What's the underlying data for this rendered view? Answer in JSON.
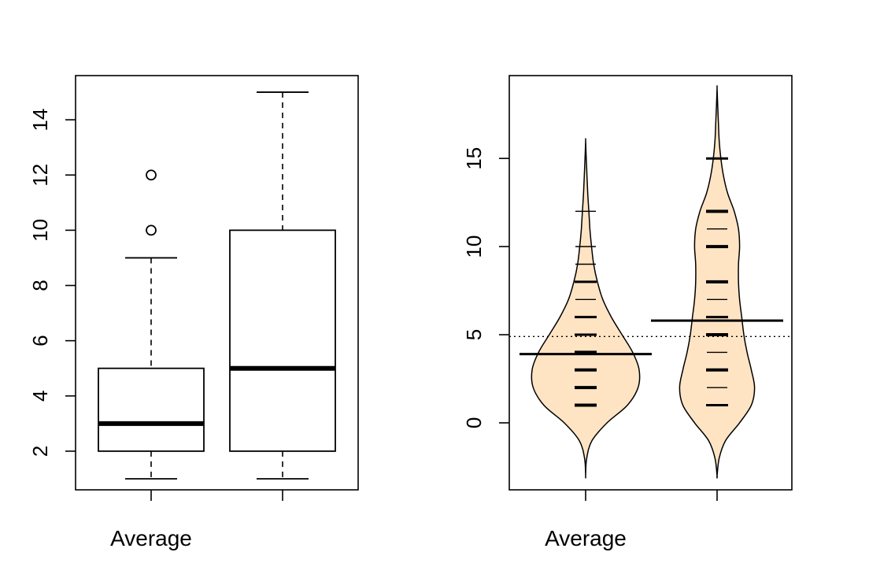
{
  "chart_data": [
    {
      "type": "boxplot",
      "categories": [
        "Average",
        ""
      ],
      "ylim": [
        0.6,
        15.6
      ],
      "yticks": [
        2,
        4,
        6,
        8,
        10,
        12,
        14
      ],
      "boxes": [
        {
          "min": 1,
          "q1": 2,
          "median": 3,
          "q3": 5,
          "max": 9,
          "outliers": [
            10,
            12
          ]
        },
        {
          "min": 1,
          "q1": 2,
          "median": 5,
          "q3": 10,
          "max": 15,
          "outliers": []
        }
      ]
    },
    {
      "type": "beanplot",
      "categories": [
        "Average",
        ""
      ],
      "ylim": [
        -3.8,
        19.7
      ],
      "yticks": [
        0,
        5,
        10,
        15
      ],
      "overall_mean": 4.9,
      "fill_color": "#FFE4C4",
      "beans": [
        {
          "mean": 3.9,
          "density_range": [
            -3,
            16
          ],
          "profile": [
            [
              -3,
              0
            ],
            [
              -2,
              0.02
            ],
            [
              -1,
              0.12
            ],
            [
              0,
              0.4
            ],
            [
              1,
              0.78
            ],
            [
              2,
              0.98
            ],
            [
              3,
              1.0
            ],
            [
              4,
              0.88
            ],
            [
              5,
              0.68
            ],
            [
              6,
              0.48
            ],
            [
              7,
              0.32
            ],
            [
              8,
              0.22
            ],
            [
              9,
              0.15
            ],
            [
              10,
              0.11
            ],
            [
              11,
              0.08
            ],
            [
              12,
              0.06
            ],
            [
              13,
              0.04
            ],
            [
              14,
              0.025
            ],
            [
              15,
              0.012
            ],
            [
              16,
              0
            ]
          ],
          "observations": [
            [
              1,
              5
            ],
            [
              2,
              3
            ],
            [
              3,
              5
            ],
            [
              4,
              3
            ],
            [
              5,
              2
            ],
            [
              6,
              2
            ],
            [
              7,
              1
            ],
            [
              8,
              2
            ],
            [
              9,
              1
            ],
            [
              10,
              1
            ],
            [
              12,
              1
            ]
          ]
        },
        {
          "mean": 5.8,
          "density_range": [
            -3,
            19
          ],
          "profile": [
            [
              -3,
              0
            ],
            [
              -2,
              0.04
            ],
            [
              -1,
              0.16
            ],
            [
              0,
              0.42
            ],
            [
              1,
              0.64
            ],
            [
              2,
              0.7
            ],
            [
              3,
              0.64
            ],
            [
              4,
              0.56
            ],
            [
              5,
              0.5
            ],
            [
              6,
              0.46
            ],
            [
              7,
              0.42
            ],
            [
              8,
              0.4
            ],
            [
              9,
              0.4
            ],
            [
              10,
              0.42
            ],
            [
              11,
              0.4
            ],
            [
              12,
              0.32
            ],
            [
              13,
              0.2
            ],
            [
              14,
              0.12
            ],
            [
              15,
              0.07
            ],
            [
              16,
              0.04
            ],
            [
              17,
              0.025
            ],
            [
              18,
              0.012
            ],
            [
              19,
              0
            ]
          ],
          "observations": [
            [
              1,
              2
            ],
            [
              2,
              1
            ],
            [
              3,
              3
            ],
            [
              4,
              1
            ],
            [
              5,
              3
            ],
            [
              6,
              2
            ],
            [
              7,
              1
            ],
            [
              8,
              3
            ],
            [
              10,
              3
            ],
            [
              11,
              1
            ],
            [
              12,
              4
            ],
            [
              15,
              2
            ]
          ]
        }
      ]
    }
  ]
}
